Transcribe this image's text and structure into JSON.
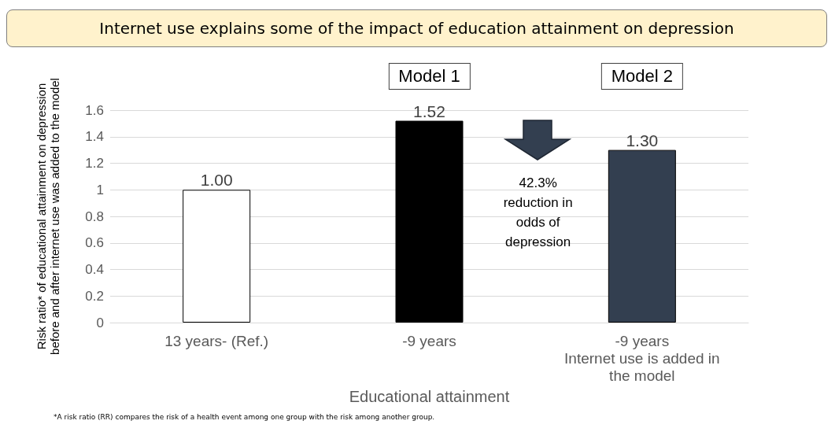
{
  "chart_data": {
    "type": "bar",
    "title": "Internet use explains some of the impact of education attainment on depression",
    "xlabel": "Educational attainment",
    "ylabel": "Risk ratio* of educational attainment on depression\nbefore and after internet use was added to the model",
    "categories": [
      "13 years- (Ref.)",
      "-9 years",
      "-9 years\nInternet use is added in\nthe model"
    ],
    "values": [
      1.0,
      1.52,
      1.3
    ],
    "colors": [
      "#ffffff",
      "#000000",
      "#333f50"
    ],
    "value_labels": [
      "1.00",
      "1.52",
      "1.30"
    ],
    "ylim": [
      0,
      1.6
    ],
    "yticks": [
      0,
      0.2,
      0.4,
      0.6,
      0.8,
      1,
      1.2,
      1.4,
      1.6
    ],
    "grid": "y",
    "annotations": [
      "Model 1",
      "Model 2",
      "42.3%\nreduction in\nodds of\ndepression",
      "*A risk ratio (RR) compares the risk of a health event among one group with the risk among another group."
    ]
  }
}
